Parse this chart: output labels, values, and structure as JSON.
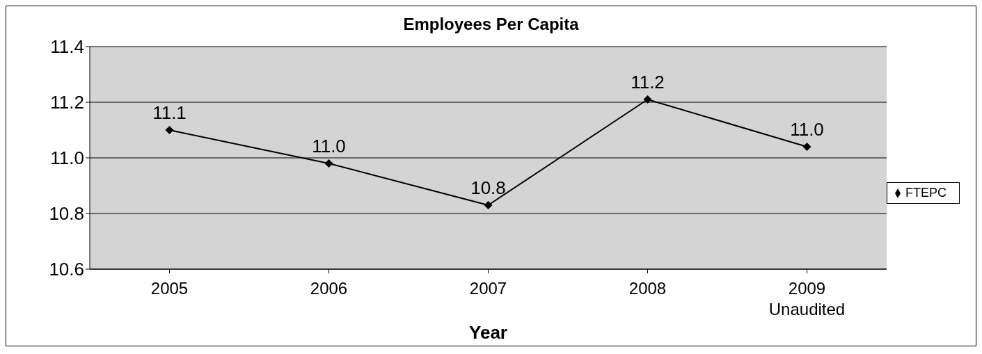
{
  "chart_data": {
    "type": "line",
    "title": "Employees Per Capita",
    "xlabel": "Year",
    "categories": [
      "2005",
      "2006",
      "2007",
      "2008",
      "2009 Unaudited"
    ],
    "series": [
      {
        "name": "FTEPC",
        "color": "#000000",
        "values": [
          11.1,
          10.98,
          10.83,
          11.21,
          11.04
        ],
        "value_labels": [
          "11.1",
          "11.0",
          "10.8",
          "11.2",
          "11.0"
        ]
      }
    ],
    "ylim": [
      10.6,
      11.4
    ],
    "yticks": [
      {
        "value": 10.6,
        "label": "10.6"
      },
      {
        "value": 10.8,
        "label": "10.8"
      },
      {
        "value": 11,
        "label": "11.0"
      },
      {
        "value": 11.2,
        "label": "11.2"
      },
      {
        "value": 11.4,
        "label": "11.4"
      }
    ],
    "grid": "y",
    "legend": "right",
    "marker": "diamond",
    "line_style": "solid"
  }
}
